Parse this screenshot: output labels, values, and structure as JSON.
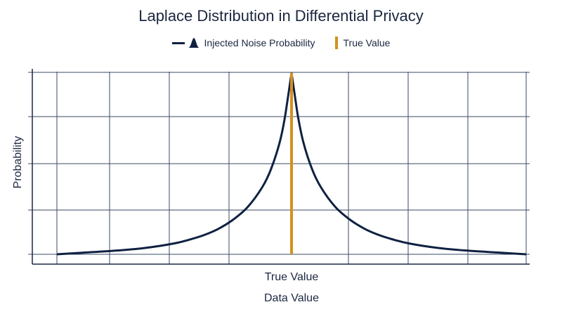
{
  "chart_data": {
    "type": "line",
    "title": "Laplace Distribution in Differential Privacy",
    "xlabel": "Data Value",
    "ylabel": "Probability",
    "x_tick_label": "True Value",
    "legend": {
      "placement": "top-center",
      "entries": [
        {
          "name": "Injected Noise Probability",
          "color": "#0f2141",
          "icon": "line-with-bell-curve-icon"
        },
        {
          "name": "True Value",
          "color": "#d4901f",
          "icon": "vertical-bar-icon"
        }
      ]
    },
    "xlim": [
      -4,
      4
    ],
    "ylim": [
      0,
      1
    ],
    "grid": true,
    "series": [
      {
        "name": "Injected Noise Probability",
        "color": "#0f2141",
        "x": [
          -4,
          -3.5,
          -3,
          -2.5,
          -2,
          -1.75,
          -1.5,
          -1.25,
          -1,
          -0.75,
          -0.5,
          -0.35,
          -0.2,
          -0.1,
          0,
          0.1,
          0.2,
          0.35,
          0.5,
          0.75,
          1,
          1.25,
          1.5,
          1.75,
          2,
          2.5,
          3,
          3.5,
          4
        ],
        "y": [
          0.0,
          0.01,
          0.02,
          0.035,
          0.06,
          0.08,
          0.105,
          0.14,
          0.19,
          0.26,
          0.37,
          0.47,
          0.62,
          0.78,
          1.0,
          0.78,
          0.62,
          0.47,
          0.37,
          0.26,
          0.19,
          0.14,
          0.105,
          0.08,
          0.06,
          0.035,
          0.02,
          0.01,
          0.0
        ]
      }
    ],
    "true_value": {
      "name": "True Value",
      "x": 0,
      "color": "#d4901f"
    }
  }
}
